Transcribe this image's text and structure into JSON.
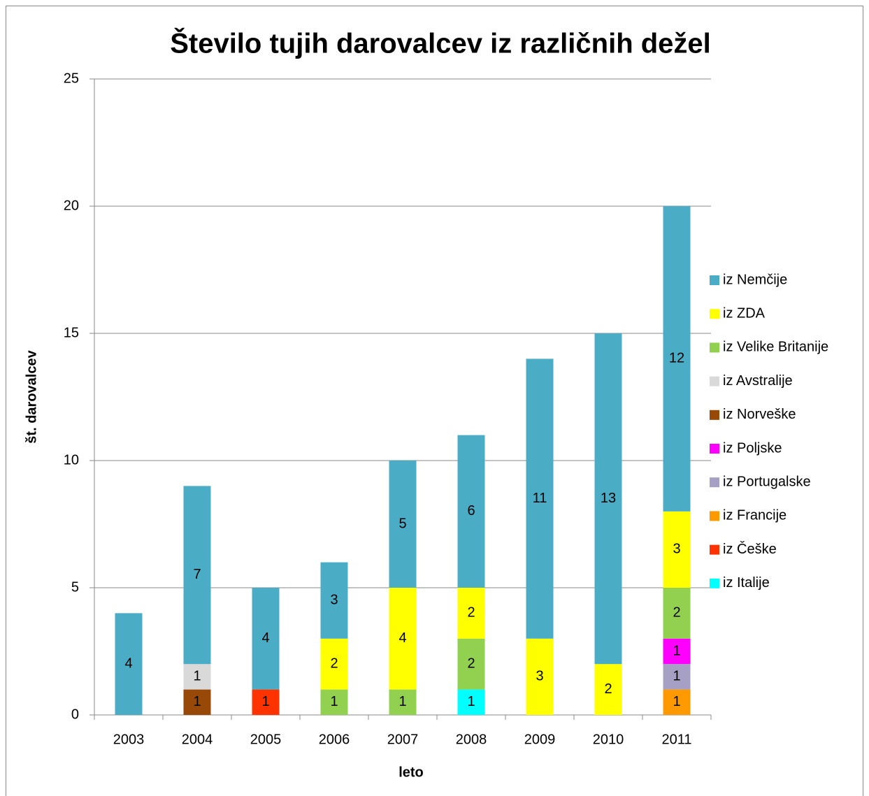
{
  "chart_data": {
    "type": "stacked_bar",
    "title": "Število tujih darovalcev iz različnih dežel",
    "xlabel": "leto",
    "ylabel": "št. darovalcev",
    "categories": [
      "2003",
      "2004",
      "2005",
      "2006",
      "2007",
      "2008",
      "2009",
      "2010",
      "2011"
    ],
    "series": [
      {
        "name": "iz Nemčije",
        "color": "#4bacc6",
        "values": [
          4,
          7,
          4,
          3,
          5,
          6,
          11,
          13,
          12
        ]
      },
      {
        "name": "iz ZDA",
        "color": "#ffff00",
        "values": [
          null,
          null,
          null,
          2,
          4,
          2,
          3,
          2,
          3
        ]
      },
      {
        "name": "iz Velike Britanije",
        "color": "#92d050",
        "values": [
          null,
          null,
          null,
          1,
          1,
          2,
          null,
          null,
          2
        ]
      },
      {
        "name": "iz Avstralije",
        "color": "#d9d9d9",
        "values": [
          null,
          1,
          null,
          null,
          null,
          null,
          null,
          null,
          null
        ]
      },
      {
        "name": "iz Norveške",
        "color": "#984807",
        "values": [
          null,
          1,
          null,
          null,
          null,
          null,
          null,
          null,
          null
        ]
      },
      {
        "name": "iz Poljske",
        "color": "#ff00ff",
        "values": [
          null,
          null,
          null,
          null,
          null,
          null,
          null,
          null,
          1
        ]
      },
      {
        "name": "iz Portugalske",
        "color": "#a6a0c4",
        "values": [
          null,
          null,
          null,
          null,
          null,
          null,
          null,
          null,
          1
        ]
      },
      {
        "name": "iz Francije",
        "color": "#ff9900",
        "values": [
          null,
          null,
          null,
          null,
          null,
          null,
          null,
          null,
          1
        ]
      },
      {
        "name": "iz Češke",
        "color": "#ff3300",
        "values": [
          null,
          null,
          1,
          null,
          null,
          null,
          null,
          null,
          null
        ]
      },
      {
        "name": "iz Italije",
        "color": "#00ffff",
        "values": [
          null,
          null,
          null,
          null,
          null,
          1,
          null,
          null,
          null
        ]
      }
    ],
    "ylim": [
      0,
      25
    ],
    "yticks": [
      0,
      5,
      10,
      15,
      20,
      25
    ],
    "grid": true,
    "legend": "right"
  }
}
